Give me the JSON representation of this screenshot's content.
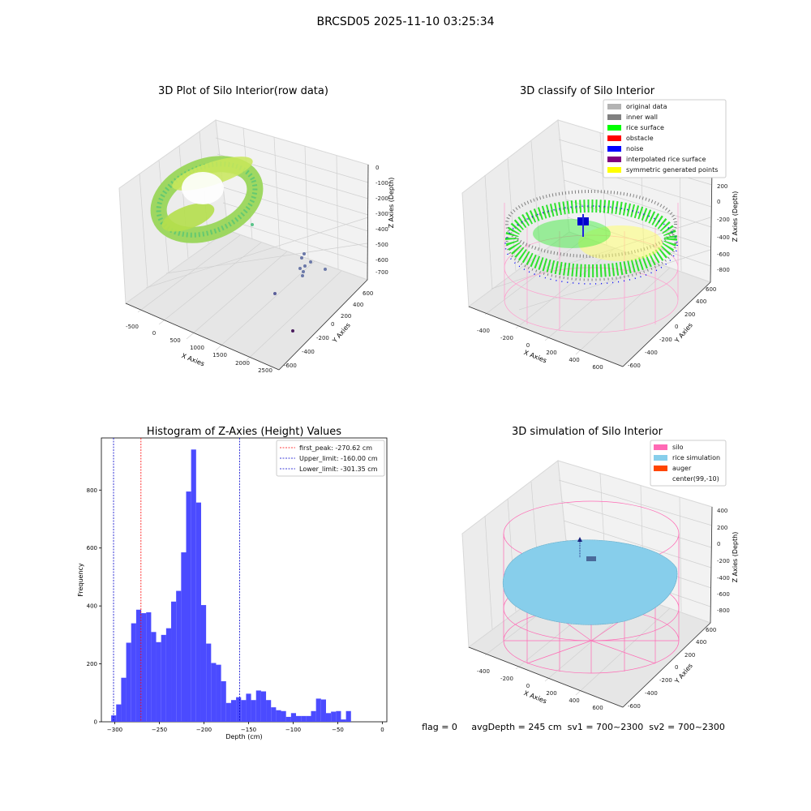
{
  "figure": {
    "suptitle": "BRCSD05 2025-11-10 03:25:34",
    "footer": "flag = 0     avgDepth = 245 cm  sv1 = 700~2300  sv2 = 700~2300"
  },
  "panels": {
    "raw": {
      "title": "3D Plot of Silo Interior(row data)",
      "xlabel": "X Axies",
      "ylabel": "Y Axies",
      "zlabel": "Z Axies (Depth)",
      "xticks": [
        "-500",
        "0",
        "500",
        "1000",
        "1500",
        "2000",
        "2500"
      ],
      "yticks": [
        "-600",
        "-400",
        "-200",
        "0",
        "200",
        "400",
        "600"
      ],
      "zticks": [
        "0",
        "-100",
        "-200",
        "-300",
        "-400",
        "-500",
        "-600",
        "-700"
      ]
    },
    "classify": {
      "title": "3D classify of Silo Interior",
      "xlabel": "X Axies",
      "ylabel": "Y Axies",
      "zlabel": "Z Axies (Depth)",
      "xticks": [
        "-400",
        "-200",
        "0",
        "200",
        "400",
        "600"
      ],
      "yticks": [
        "-600",
        "-400",
        "-200",
        "0",
        "200",
        "400",
        "600"
      ],
      "zticks": [
        "200",
        "0",
        "-200",
        "-400",
        "-600",
        "-800"
      ],
      "legend": [
        {
          "label": "original data",
          "color": "#b3b3b3"
        },
        {
          "label": "inner wall",
          "color": "#808080"
        },
        {
          "label": "rice surface",
          "color": "#00ff00"
        },
        {
          "label": "obstacle",
          "color": "#ff0000"
        },
        {
          "label": "noise",
          "color": "#0000ff"
        },
        {
          "label": "interpolated rice surface",
          "color": "#800080"
        },
        {
          "label": "symmetric generated points",
          "color": "#ffff00"
        }
      ]
    },
    "simulation": {
      "title": "3D simulation of Silo Interior",
      "xlabel": "X Axies",
      "ylabel": "Y Axies",
      "zlabel": "Z Axies (Depth)",
      "xticks": [
        "-400",
        "-200",
        "0",
        "200",
        "400",
        "600"
      ],
      "yticks": [
        "-600",
        "-400",
        "-200",
        "0",
        "200",
        "400",
        "600"
      ],
      "zticks": [
        "400",
        "200",
        "0",
        "-200",
        "-400",
        "-600",
        "-800"
      ],
      "legend": [
        {
          "label": "silo",
          "color": "#ff69b4"
        },
        {
          "label": "rice simulation",
          "color": "#87ceeb"
        },
        {
          "label": "auger",
          "color": "#ff4500"
        },
        {
          "label": "center(99,-10)",
          "color": "#ffffff"
        }
      ]
    }
  },
  "chart_data": {
    "type": "bar",
    "title": "Histogram of Z-Axies (Height) Values",
    "xlabel": "Depth (cm)",
    "ylabel": "Frequency",
    "xlim": [
      -315,
      5
    ],
    "ylim": [
      0,
      980
    ],
    "xticks": [
      -300,
      -250,
      -200,
      -150,
      -100,
      -50,
      0
    ],
    "yticks": [
      0,
      200,
      400,
      600,
      800
    ],
    "bar_color": "#4b4bff",
    "bin_width": 5.6,
    "bin_start": -304,
    "values": [
      22,
      60,
      152,
      273,
      340,
      387,
      375,
      378,
      310,
      275,
      300,
      323,
      415,
      452,
      585,
      795,
      940,
      757,
      403,
      270,
      203,
      197,
      140,
      65,
      75,
      85,
      75,
      97,
      75,
      108,
      105,
      75,
      50,
      40,
      37,
      17,
      30,
      20,
      20,
      20,
      37,
      80,
      77,
      30,
      35,
      37,
      8,
      37
    ],
    "lines": [
      {
        "label": "first_peak: -270.62 cm",
        "x": -270.62,
        "color": "#ff0000"
      },
      {
        "label": "Upper_limit: -160.00 cm",
        "x": -160.0,
        "color": "#0000cc"
      },
      {
        "label": "Lower_limit: -301.35 cm",
        "x": -301.35,
        "color": "#0000cc"
      }
    ],
    "legend_position": "top-right"
  }
}
